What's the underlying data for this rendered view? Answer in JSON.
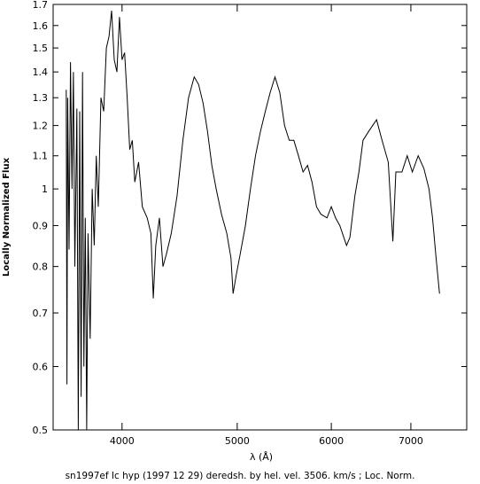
{
  "chart_data": {
    "type": "line",
    "xscale": "log",
    "yscale": "log",
    "xlabel": "λ (Å)",
    "ylabel": "Locally Normalized Flux",
    "caption": "sn1997ef Ic hyp (1997 12 29) deredsh. by hel. vel.  3506. km/s ;  Loc. Norm.",
    "xlim": [
      3500,
      7800
    ],
    "ylim": [
      0.5,
      1.7
    ],
    "xticks": [
      4000,
      5000,
      6000,
      7000
    ],
    "yticks": [
      0.5,
      0.6,
      0.7,
      0.8,
      0.9,
      1,
      1.1,
      1.2,
      1.3,
      1.4,
      1.5,
      1.6,
      1.7
    ],
    "series": [
      {
        "color": "#000000",
        "x": [
          3590,
          3595,
          3600,
          3610,
          3620,
          3630,
          3640,
          3650,
          3665,
          3675,
          3685,
          3695,
          3705,
          3715,
          3725,
          3735,
          3745,
          3760,
          3775,
          3790,
          3805,
          3820,
          3840,
          3860,
          3880,
          3900,
          3920,
          3940,
          3960,
          3980,
          4000,
          4020,
          4040,
          4060,
          4080,
          4100,
          4130,
          4160,
          4200,
          4230,
          4250,
          4270,
          4300,
          4330,
          4360,
          4400,
          4450,
          4500,
          4550,
          4600,
          4640,
          4680,
          4720,
          4760,
          4800,
          4850,
          4900,
          4940,
          4960,
          4990,
          5030,
          5080,
          5130,
          5180,
          5230,
          5280,
          5330,
          5380,
          5430,
          5480,
          5530,
          5580,
          5630,
          5680,
          5730,
          5780,
          5830,
          5880,
          5950,
          6000,
          6050,
          6100,
          6180,
          6220,
          6280,
          6330,
          6380,
          6450,
          6550,
          6620,
          6700,
          6760,
          6800,
          6880,
          6950,
          7020,
          7100,
          7180,
          7250,
          7300,
          7350,
          7400
        ],
        "values": [
          1.33,
          0.57,
          1.3,
          0.84,
          1.44,
          1.0,
          1.4,
          0.8,
          1.26,
          0.5,
          1.25,
          0.55,
          1.4,
          0.6,
          0.92,
          0.5,
          0.88,
          0.65,
          1.0,
          0.85,
          1.1,
          0.95,
          1.3,
          1.25,
          1.5,
          1.55,
          1.67,
          1.45,
          1.4,
          1.64,
          1.45,
          1.48,
          1.3,
          1.12,
          1.15,
          1.02,
          1.08,
          0.95,
          0.92,
          0.88,
          0.73,
          0.85,
          0.92,
          0.8,
          0.83,
          0.88,
          0.98,
          1.15,
          1.3,
          1.38,
          1.35,
          1.28,
          1.18,
          1.07,
          1.0,
          0.93,
          0.88,
          0.82,
          0.74,
          0.78,
          0.83,
          0.9,
          1.0,
          1.1,
          1.18,
          1.25,
          1.32,
          1.38,
          1.32,
          1.2,
          1.15,
          1.15,
          1.1,
          1.05,
          1.07,
          1.02,
          0.95,
          0.93,
          0.92,
          0.95,
          0.92,
          0.9,
          0.85,
          0.87,
          0.98,
          1.05,
          1.15,
          1.18,
          1.22,
          1.15,
          1.08,
          0.86,
          1.05,
          1.05,
          1.1,
          1.05,
          1.1,
          1.06,
          1.0,
          0.92,
          0.82,
          0.74
        ]
      }
    ]
  }
}
